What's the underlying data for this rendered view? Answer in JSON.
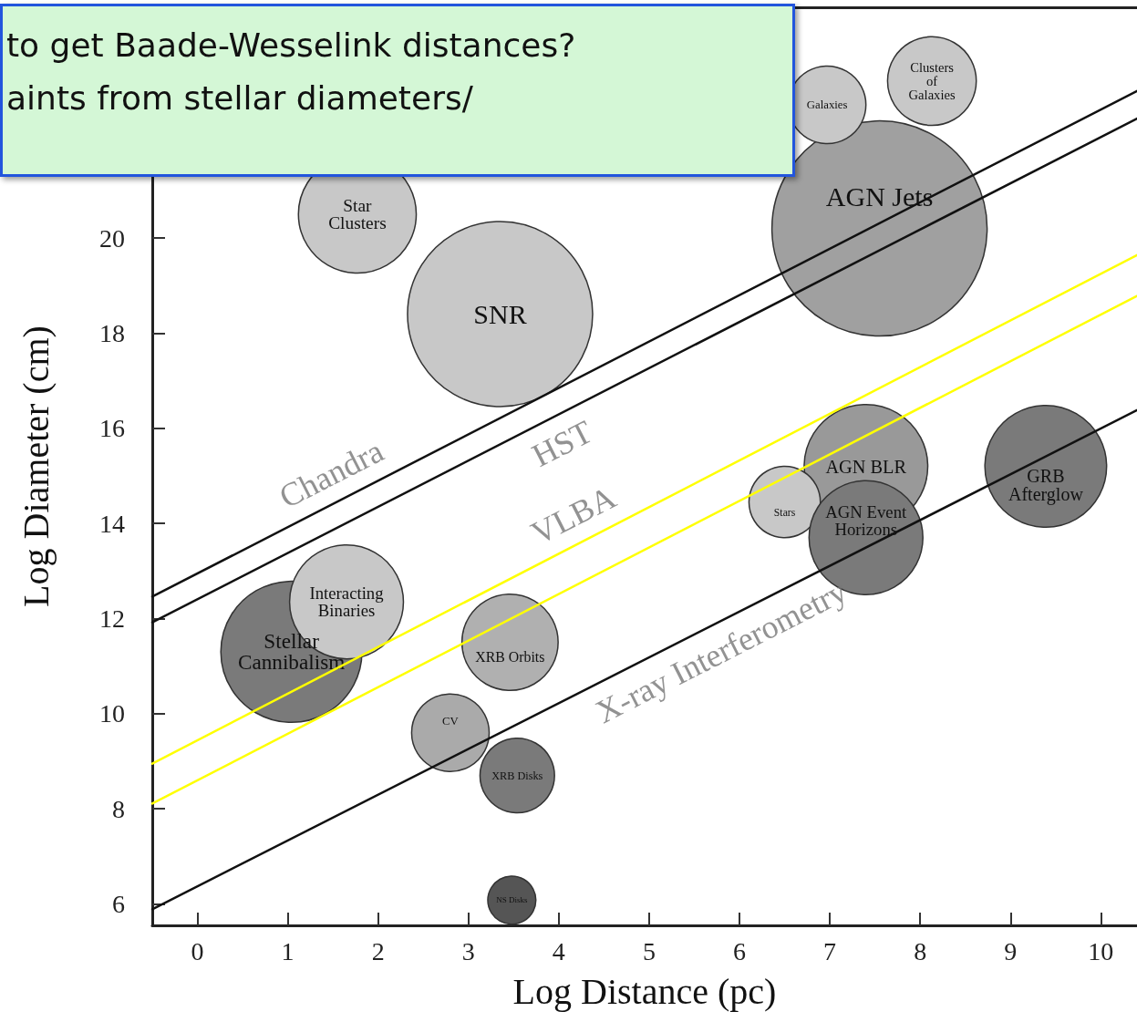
{
  "chart_data": {
    "type": "bubble",
    "xlabel": "Log Distance (pc)",
    "ylabel": "Log Diameter (cm)",
    "xlim": [
      -0.5,
      10.4
    ],
    "xticks": [
      0,
      1,
      2,
      3,
      4,
      5,
      6,
      7,
      8,
      9,
      10
    ],
    "ylim": [
      5.55,
      24.85
    ],
    "yticks": [
      6,
      8,
      10,
      12,
      14,
      16,
      18,
      20
    ],
    "grid": false,
    "annotations": [
      "to get Baade-Wesselink distances?",
      "aints from stellar diameters/",
      {
        "text": "Chandra",
        "x": 1.62,
        "y": 14.53
      },
      {
        "text": "HST",
        "x": 3.9,
        "y": 16.19
      },
      {
        "text": "VLBA",
        "x": 4.3,
        "y": 13.66
      },
      {
        "text": "X-ray Interferometry",
        "x": 5.66,
        "y": 11.82
      }
    ],
    "series": [
      {
        "name": "AGN Jets",
        "color": "#a0a0a0",
        "x": [
          7.55
        ],
        "values": [
          20.2
        ],
        "sizes": [
          1
        ]
      },
      {
        "name": "Star Clusters",
        "color": "#c8c8c8",
        "x": [
          1.77
        ],
        "values": [
          20.5
        ],
        "sizes": [
          0.3
        ]
      },
      {
        "name": "SNR",
        "color": "#c8c8c8",
        "x": [
          3.35
        ],
        "values": [
          18.4
        ],
        "sizes": [
          0.74
        ]
      },
      {
        "name": "Galaxies",
        "color": "#c8c8c8",
        "x": [
          6.97
        ],
        "values": [
          22.8
        ],
        "sizes": [
          0.13
        ]
      },
      {
        "name": "Clusters of Galaxies",
        "color": "#c8c8c8",
        "x": [
          8.13
        ],
        "values": [
          23.3
        ],
        "sizes": [
          0.17
        ]
      },
      {
        "name": "AGN BLR",
        "color": "#999999",
        "x": [
          7.4
        ],
        "values": [
          15.2
        ],
        "sizes": [
          0.33
        ]
      },
      {
        "name": "Stars",
        "color": "#c8c8c8",
        "x": [
          6.5
        ],
        "values": [
          14.45
        ],
        "sizes": [
          0.11
        ]
      },
      {
        "name": "AGN Event Horizons",
        "color": "#7a7a7a",
        "x": [
          7.4
        ],
        "values": [
          13.7
        ],
        "sizes": [
          0.28
        ]
      },
      {
        "name": "GRB Afterglow",
        "color": "#7a7a7a",
        "x": [
          9.39
        ],
        "values": [
          15.2
        ],
        "sizes": [
          0.32
        ]
      },
      {
        "name": "Stellar Cannibalism",
        "color": "#7a7a7a",
        "x": [
          1.04
        ],
        "values": [
          11.3
        ],
        "sizes": [
          0.43
        ]
      },
      {
        "name": "Interacting Binaries",
        "color": "#c8c8c8",
        "x": [
          1.65
        ],
        "values": [
          12.35
        ],
        "sizes": [
          0.28
        ]
      },
      {
        "name": "XRB Orbits",
        "color": "#b0b0b0",
        "x": [
          3.46
        ],
        "values": [
          11.5
        ],
        "sizes": [
          0.2
        ]
      },
      {
        "name": "XRB Disks",
        "color": "#7a7a7a",
        "x": [
          3.54
        ],
        "values": [
          8.7
        ],
        "sizes": [
          0.12
        ]
      },
      {
        "name": "CV",
        "color": "#aaaaaa",
        "x": [
          2.8
        ],
        "values": [
          9.6
        ],
        "sizes": [
          0.13
        ]
      },
      {
        "name": "NS Disks",
        "color": "#555555",
        "x": [
          3.48
        ],
        "values": [
          6.08
        ],
        "sizes": [
          0.05
        ]
      },
      {
        "type": "line",
        "color": "#111111",
        "x": [
          -0.5,
          10.4
        ],
        "values": [
          12.46,
          23.09
        ]
      },
      {
        "type": "line",
        "color": "#111111",
        "x": [
          -0.5,
          10.4
        ],
        "values": [
          11.92,
          22.51
        ]
      },
      {
        "type": "line",
        "color": "#111111",
        "x": [
          -0.5,
          10.4
        ],
        "values": [
          5.89,
          16.38
        ]
      },
      {
        "type": "line",
        "color": "#ffff00",
        "x": [
          -0.5,
          10.4
        ],
        "values": [
          8.95,
          19.64
        ]
      },
      {
        "type": "line",
        "color": "#ffff00",
        "x": [
          -0.5,
          10.4
        ],
        "values": [
          8.11,
          18.78
        ]
      }
    ]
  }
}
